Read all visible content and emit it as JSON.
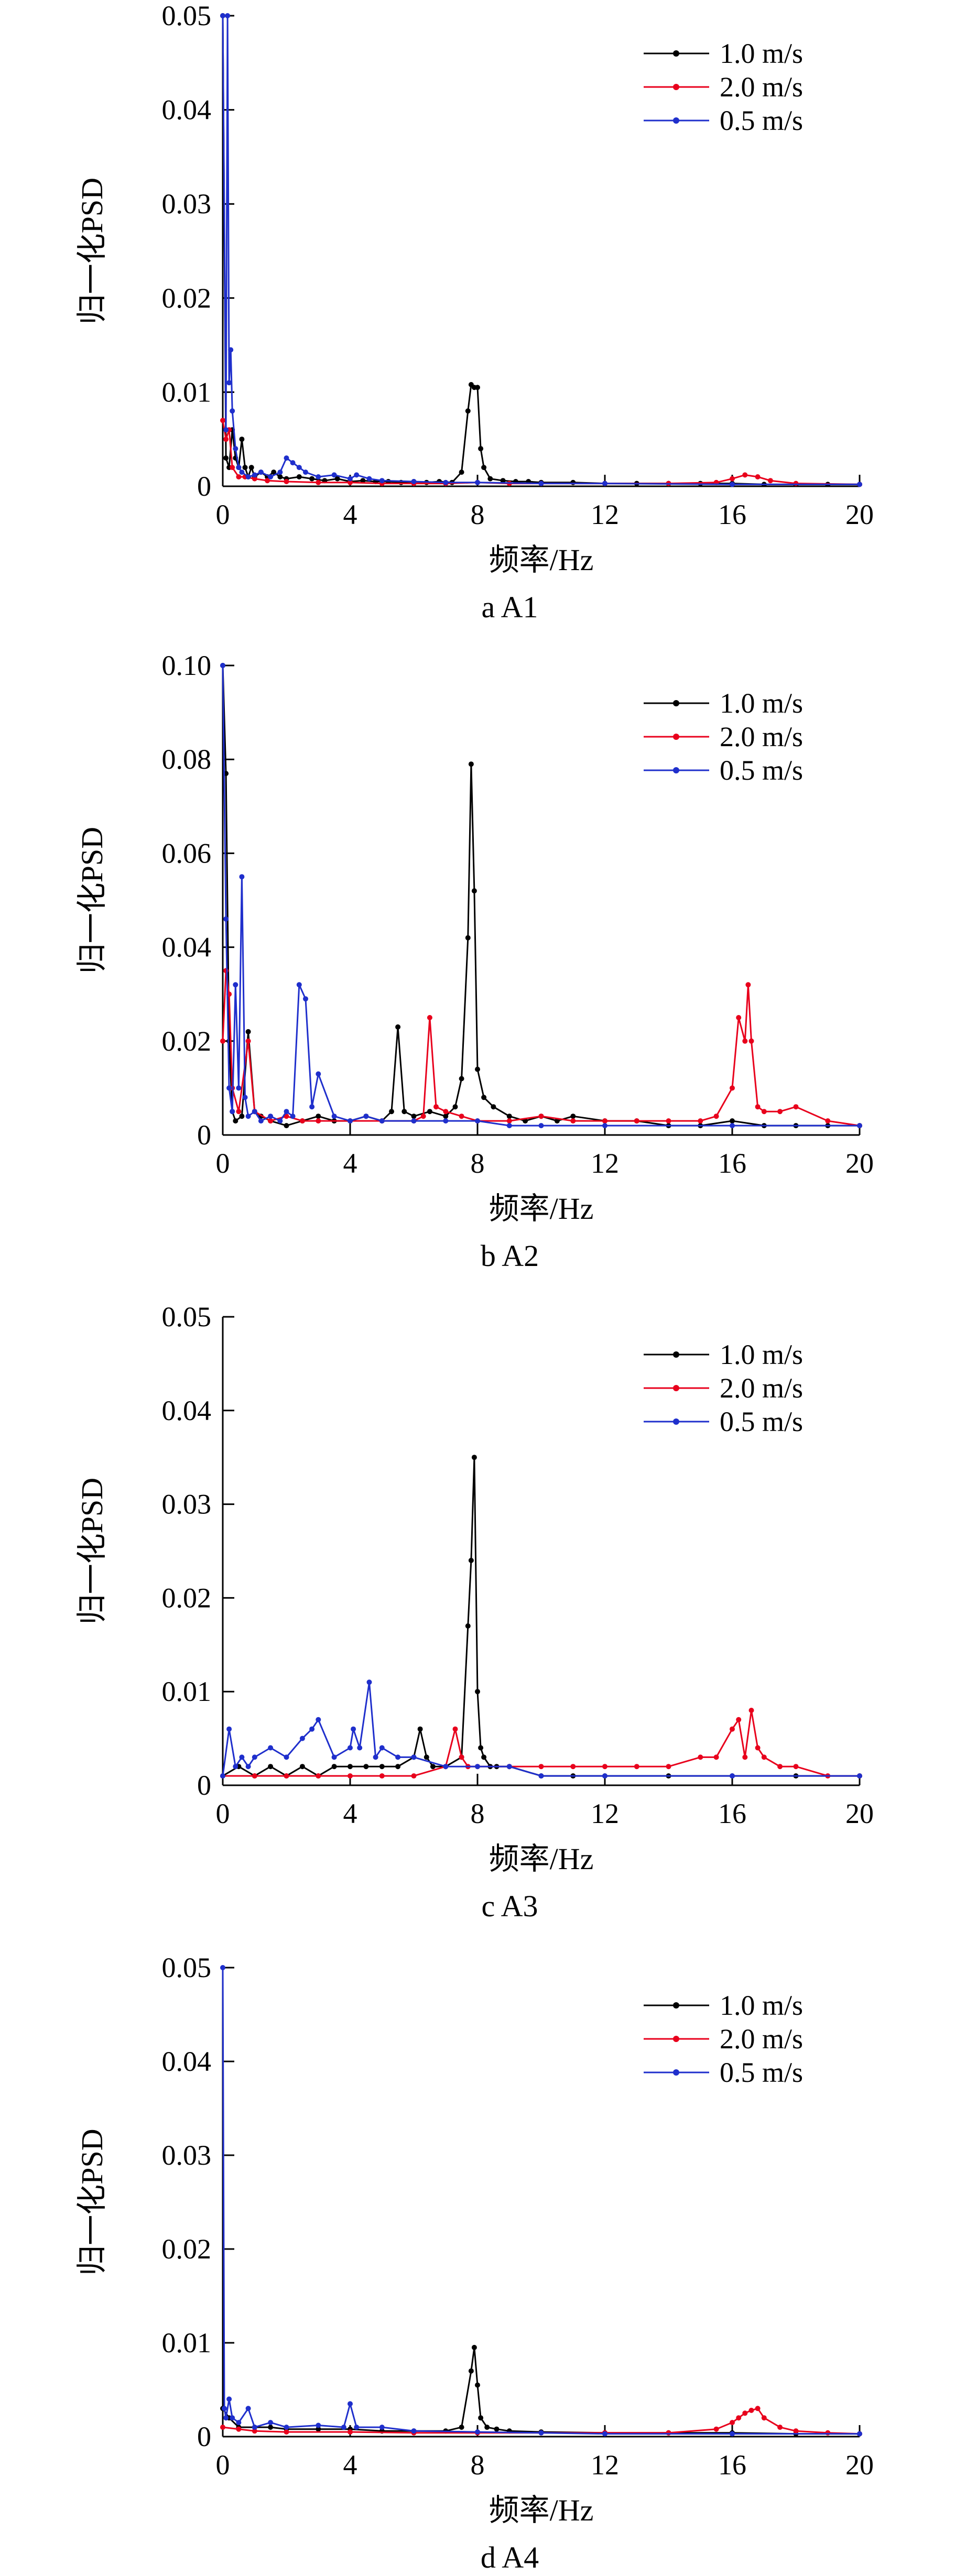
{
  "figure": {
    "ylabel": "归一化PSD",
    "xlabel": "频率/Hz",
    "legend_entries": [
      {
        "name": "1.0 m/s",
        "color": "#000000"
      },
      {
        "name": "2.0 m/s",
        "color": "#e8001c"
      },
      {
        "name": "0.5 m/s",
        "color": "#1f2fcc"
      }
    ]
  },
  "chart_data": [
    {
      "type": "line",
      "caption": "a A1",
      "title": "",
      "xlabel": "频率/Hz",
      "ylabel": "归一化PSD",
      "xlim": [
        0,
        20
      ],
      "ylim": [
        0,
        0.05
      ],
      "xticks": [
        "0",
        "4",
        "8",
        "12",
        "16",
        "20"
      ],
      "yticks": [
        "0",
        "0.01",
        "0.02",
        "0.03",
        "0.04",
        "0.05"
      ],
      "legend_position": "top-right",
      "grid": false,
      "series": [
        {
          "name": "1.0 m/s",
          "color": "#000000",
          "x": [
            0,
            0.1,
            0.2,
            0.3,
            0.4,
            0.5,
            0.6,
            0.7,
            0.8,
            0.9,
            1.0,
            1.2,
            1.4,
            1.6,
            1.8,
            2.0,
            2.4,
            2.8,
            3.2,
            3.6,
            4.0,
            4.4,
            4.8,
            5.2,
            5.6,
            6.0,
            6.4,
            6.8,
            7.2,
            7.5,
            7.7,
            7.8,
            7.9,
            8.0,
            8.1,
            8.2,
            8.4,
            8.8,
            9.2,
            9.6,
            10.0,
            11.0,
            12.0,
            13.0,
            14.0,
            15.0,
            16.0,
            17.0,
            18.0,
            19.0,
            20.0
          ],
          "values": [
            0.05,
            0.003,
            0.002,
            0.006,
            0.003,
            0.002,
            0.005,
            0.002,
            0.001,
            0.002,
            0.001,
            0.0015,
            0.001,
            0.0015,
            0.001,
            0.0008,
            0.001,
            0.0008,
            0.0006,
            0.0008,
            0.0005,
            0.0006,
            0.0005,
            0.0005,
            0.0004,
            0.0005,
            0.0004,
            0.0005,
            0.0004,
            0.0015,
            0.008,
            0.0108,
            0.0105,
            0.0105,
            0.004,
            0.002,
            0.0008,
            0.0006,
            0.0005,
            0.0005,
            0.0004,
            0.0004,
            0.0003,
            0.0003,
            0.0003,
            0.0003,
            0.0003,
            0.0002,
            0.0002,
            0.0002,
            0.0002
          ]
        },
        {
          "name": "2.0 m/s",
          "color": "#e8001c",
          "x": [
            0,
            0.1,
            0.2,
            0.3,
            0.5,
            0.7,
            1.0,
            1.4,
            2.0,
            3.0,
            4.0,
            5.0,
            6.0,
            7.0,
            8.0,
            9.0,
            10.0,
            12.0,
            14.0,
            15.5,
            16.0,
            16.4,
            16.8,
            17.2,
            18.0,
            20.0
          ],
          "values": [
            0.007,
            0.005,
            0.006,
            0.002,
            0.001,
            0.001,
            0.0008,
            0.0006,
            0.0005,
            0.0004,
            0.0004,
            0.0003,
            0.0003,
            0.0003,
            0.0004,
            0.0003,
            0.0003,
            0.0003,
            0.0003,
            0.0004,
            0.0008,
            0.0012,
            0.001,
            0.0006,
            0.0003,
            0.0002
          ]
        },
        {
          "name": "0.5 m/s",
          "color": "#1f2fcc",
          "x": [
            0,
            0.1,
            0.15,
            0.2,
            0.25,
            0.3,
            0.4,
            0.5,
            0.6,
            0.8,
            1.0,
            1.2,
            1.5,
            1.8,
            2.0,
            2.2,
            2.4,
            2.6,
            3.0,
            3.5,
            4.0,
            4.2,
            4.6,
            5.0,
            6.0,
            7.0,
            8.0,
            10.0,
            12.0,
            16.0,
            20.0
          ],
          "values": [
            0.05,
            0.006,
            0.05,
            0.011,
            0.0145,
            0.008,
            0.004,
            0.002,
            0.0015,
            0.001,
            0.0012,
            0.0015,
            0.001,
            0.0015,
            0.003,
            0.0025,
            0.002,
            0.0015,
            0.001,
            0.0012,
            0.0008,
            0.0012,
            0.0008,
            0.0006,
            0.0005,
            0.0004,
            0.0004,
            0.0003,
            0.0003,
            0.0002,
            0.0002
          ]
        }
      ]
    },
    {
      "type": "line",
      "caption": "b A2",
      "title": "",
      "xlabel": "频率/Hz",
      "ylabel": "归一化PSD",
      "xlim": [
        0,
        20
      ],
      "ylim": [
        0,
        0.1
      ],
      "xticks": [
        "0",
        "4",
        "8",
        "12",
        "16",
        "20"
      ],
      "yticks": [
        "0",
        "0.02",
        "0.04",
        "0.06",
        "0.08",
        "0.10"
      ],
      "legend_position": "top-right",
      "grid": false,
      "series": [
        {
          "name": "1.0 m/s",
          "color": "#000000",
          "x": [
            0,
            0.1,
            0.2,
            0.3,
            0.4,
            0.6,
            0.8,
            1.0,
            1.2,
            1.5,
            2.0,
            2.5,
            3.0,
            3.5,
            4.0,
            4.5,
            5.0,
            5.3,
            5.5,
            5.7,
            6.0,
            6.5,
            7.0,
            7.3,
            7.5,
            7.7,
            7.8,
            7.9,
            8.0,
            8.2,
            8.5,
            9.0,
            9.5,
            10.0,
            10.5,
            11.0,
            12.0,
            13.0,
            14.0,
            15.0,
            16.0,
            17.0,
            18.0,
            19.0,
            20.0
          ],
          "values": [
            0.1,
            0.077,
            0.02,
            0.005,
            0.003,
            0.004,
            0.022,
            0.005,
            0.004,
            0.003,
            0.002,
            0.003,
            0.004,
            0.003,
            0.003,
            0.004,
            0.003,
            0.005,
            0.023,
            0.005,
            0.004,
            0.005,
            0.004,
            0.006,
            0.012,
            0.042,
            0.079,
            0.052,
            0.014,
            0.008,
            0.006,
            0.004,
            0.003,
            0.004,
            0.003,
            0.004,
            0.003,
            0.003,
            0.002,
            0.002,
            0.003,
            0.002,
            0.002,
            0.002,
            0.002
          ]
        },
        {
          "name": "2.0 m/s",
          "color": "#e8001c",
          "x": [
            0,
            0.1,
            0.2,
            0.3,
            0.5,
            0.8,
            1.0,
            1.5,
            2.0,
            2.5,
            3.0,
            4.0,
            5.0,
            6.0,
            6.3,
            6.5,
            6.7,
            7.0,
            7.5,
            8.0,
            9.0,
            10.0,
            11.0,
            12.0,
            13.0,
            14.0,
            15.0,
            15.5,
            16.0,
            16.2,
            16.4,
            16.5,
            16.6,
            16.8,
            17.0,
            17.5,
            18.0,
            19.0,
            20.0
          ],
          "values": [
            0.02,
            0.035,
            0.03,
            0.01,
            0.005,
            0.02,
            0.005,
            0.003,
            0.004,
            0.003,
            0.003,
            0.003,
            0.003,
            0.003,
            0.004,
            0.025,
            0.006,
            0.005,
            0.004,
            0.003,
            0.003,
            0.004,
            0.003,
            0.003,
            0.003,
            0.003,
            0.003,
            0.004,
            0.01,
            0.025,
            0.02,
            0.032,
            0.02,
            0.006,
            0.005,
            0.005,
            0.006,
            0.003,
            0.002
          ]
        },
        {
          "name": "0.5 m/s",
          "color": "#1f2fcc",
          "x": [
            0,
            0.1,
            0.2,
            0.3,
            0.4,
            0.5,
            0.6,
            0.7,
            0.8,
            1.0,
            1.2,
            1.5,
            1.8,
            2.0,
            2.2,
            2.4,
            2.6,
            2.8,
            3.0,
            3.5,
            4.0,
            4.5,
            5.0,
            6.0,
            7.0,
            8.0,
            9.0,
            10.0,
            12.0,
            16.0,
            20.0
          ],
          "values": [
            0.1,
            0.046,
            0.01,
            0.005,
            0.032,
            0.01,
            0.055,
            0.008,
            0.004,
            0.005,
            0.003,
            0.004,
            0.003,
            0.005,
            0.004,
            0.032,
            0.029,
            0.006,
            0.013,
            0.004,
            0.003,
            0.004,
            0.003,
            0.003,
            0.003,
            0.003,
            0.002,
            0.002,
            0.002,
            0.002,
            0.002
          ]
        }
      ]
    },
    {
      "type": "line",
      "caption": "c A3",
      "title": "",
      "xlabel": "频率/Hz",
      "ylabel": "归一化PSD",
      "xlim": [
        0,
        20
      ],
      "ylim": [
        0,
        0.05
      ],
      "xticks": [
        "0",
        "4",
        "8",
        "12",
        "16",
        "20"
      ],
      "yticks": [
        "0",
        "0.01",
        "0.02",
        "0.03",
        "0.04",
        "0.05"
      ],
      "legend_position": "top-right",
      "grid": false,
      "series": [
        {
          "name": "1.0 m/s",
          "color": "#000000",
          "x": [
            0,
            0.5,
            1.0,
            1.5,
            2.0,
            2.5,
            3.0,
            3.5,
            4.0,
            4.5,
            5.0,
            5.5,
            6.0,
            6.2,
            6.4,
            6.6,
            7.0,
            7.5,
            7.7,
            7.8,
            7.9,
            8.0,
            8.1,
            8.2,
            8.4,
            8.6,
            9.0,
            10.0,
            11.0,
            12.0,
            14.0,
            16.0,
            18.0,
            20.0
          ],
          "values": [
            0.001,
            0.002,
            0.001,
            0.002,
            0.001,
            0.002,
            0.001,
            0.002,
            0.002,
            0.002,
            0.002,
            0.002,
            0.003,
            0.006,
            0.003,
            0.002,
            0.002,
            0.003,
            0.017,
            0.024,
            0.035,
            0.01,
            0.004,
            0.003,
            0.002,
            0.002,
            0.002,
            0.001,
            0.001,
            0.001,
            0.001,
            0.001,
            0.001,
            0.001
          ]
        },
        {
          "name": "2.0 m/s",
          "color": "#e8001c",
          "x": [
            0,
            1.0,
            2.0,
            3.0,
            4.0,
            5.0,
            6.0,
            7.0,
            7.3,
            7.5,
            7.7,
            8.0,
            9.0,
            10.0,
            11.0,
            12.0,
            13.0,
            14.0,
            15.0,
            15.5,
            16.0,
            16.2,
            16.4,
            16.6,
            16.8,
            17.0,
            17.5,
            18.0,
            19.0,
            20.0
          ],
          "values": [
            0.001,
            0.001,
            0.001,
            0.001,
            0.001,
            0.001,
            0.001,
            0.002,
            0.006,
            0.003,
            0.002,
            0.002,
            0.002,
            0.002,
            0.002,
            0.002,
            0.002,
            0.002,
            0.003,
            0.003,
            0.006,
            0.007,
            0.003,
            0.008,
            0.004,
            0.003,
            0.002,
            0.002,
            0.001,
            0.001
          ]
        },
        {
          "name": "0.5 m/s",
          "color": "#1f2fcc",
          "x": [
            0,
            0.2,
            0.4,
            0.6,
            0.8,
            1.0,
            1.5,
            2.0,
            2.5,
            2.8,
            3.0,
            3.5,
            4.0,
            4.1,
            4.3,
            4.6,
            4.8,
            5.0,
            5.5,
            6.0,
            7.0,
            8.0,
            9.0,
            10.0,
            12.0,
            16.0,
            20.0
          ],
          "values": [
            0.001,
            0.006,
            0.002,
            0.003,
            0.002,
            0.003,
            0.004,
            0.003,
            0.005,
            0.006,
            0.007,
            0.003,
            0.004,
            0.006,
            0.004,
            0.011,
            0.003,
            0.004,
            0.003,
            0.003,
            0.002,
            0.002,
            0.002,
            0.001,
            0.001,
            0.001,
            0.001
          ]
        }
      ]
    },
    {
      "type": "line",
      "caption": "d A4",
      "title": "",
      "xlabel": "频率/Hz",
      "ylabel": "归一化PSD",
      "xlim": [
        0,
        20
      ],
      "ylim": [
        0,
        0.05
      ],
      "xticks": [
        "0",
        "4",
        "8",
        "12",
        "16",
        "20"
      ],
      "yticks": [
        "0",
        "0.01",
        "0.02",
        "0.03",
        "0.04",
        "0.05"
      ],
      "legend_position": "top-right",
      "grid": false,
      "series": [
        {
          "name": "1.0 m/s",
          "color": "#000000",
          "x": [
            0,
            0.2,
            0.5,
            1.0,
            1.5,
            2.0,
            3.0,
            4.0,
            5.0,
            6.0,
            7.0,
            7.5,
            7.8,
            7.9,
            8.0,
            8.1,
            8.3,
            8.6,
            9.0,
            10.0,
            12.0,
            14.0,
            16.0,
            18.0,
            20.0
          ],
          "values": [
            0.003,
            0.002,
            0.001,
            0.001,
            0.001,
            0.0008,
            0.0008,
            0.0008,
            0.0006,
            0.0006,
            0.0006,
            0.001,
            0.007,
            0.0095,
            0.0055,
            0.002,
            0.001,
            0.0008,
            0.0006,
            0.0005,
            0.0004,
            0.0004,
            0.0004,
            0.0003,
            0.0003
          ]
        },
        {
          "name": "2.0 m/s",
          "color": "#e8001c",
          "x": [
            0,
            0.5,
            1.0,
            2.0,
            4.0,
            6.0,
            8.0,
            10.0,
            12.0,
            14.0,
            15.5,
            16.0,
            16.2,
            16.4,
            16.6,
            16.8,
            17.0,
            17.5,
            18.0,
            19.0,
            20.0
          ],
          "values": [
            0.001,
            0.0008,
            0.0006,
            0.0005,
            0.0005,
            0.0004,
            0.0004,
            0.0004,
            0.0004,
            0.0004,
            0.0008,
            0.0015,
            0.002,
            0.0025,
            0.0028,
            0.003,
            0.002,
            0.001,
            0.0006,
            0.0004,
            0.0003
          ]
        },
        {
          "name": "0.5 m/s",
          "color": "#1f2fcc",
          "x": [
            0,
            0.05,
            0.1,
            0.2,
            0.3,
            0.5,
            0.8,
            1.0,
            1.5,
            2.0,
            3.0,
            3.8,
            4.0,
            4.2,
            5.0,
            6.0,
            8.0,
            10.0,
            12.0,
            16.0,
            20.0
          ],
          "values": [
            0.05,
            0.003,
            0.002,
            0.004,
            0.002,
            0.0015,
            0.003,
            0.001,
            0.0015,
            0.001,
            0.0012,
            0.001,
            0.0035,
            0.001,
            0.001,
            0.0006,
            0.0005,
            0.0004,
            0.0003,
            0.0003,
            0.0003
          ]
        }
      ]
    }
  ]
}
